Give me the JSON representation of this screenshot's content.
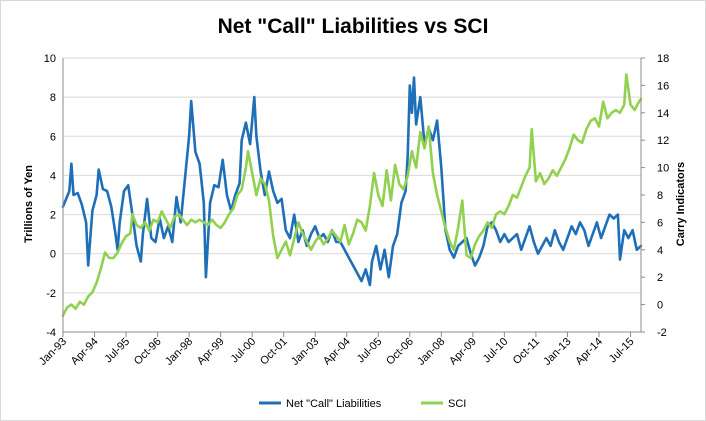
{
  "chart_data": {
    "type": "line",
    "title": "Net \"Call\" Liabilities vs SCI",
    "ylabel_left": "Trillions of Yen",
    "ylabel_right": "Carry Indicators",
    "ylim_left": [
      -4,
      10
    ],
    "ylim_right": [
      -2,
      18
    ],
    "yticks_left": [
      "-4",
      "-2",
      "0",
      "2",
      "4",
      "6",
      "8",
      "10"
    ],
    "yticks_right": [
      "-2",
      "0",
      "2",
      "4",
      "6",
      "8",
      "10",
      "12",
      "14",
      "16",
      "18"
    ],
    "x_start": "1993-01",
    "x_end": "2015-12",
    "xticks": [
      "Jan-93",
      "Apr-94",
      "Jul-95",
      "Oct-96",
      "Jan-98",
      "Apr-99",
      "Jul-00",
      "Oct-01",
      "Jan-03",
      "Apr-04",
      "Jul-05",
      "Oct-06",
      "Jan-08",
      "Apr-09",
      "Jul-10",
      "Oct-11",
      "Jan-13",
      "Apr-14",
      "Jul-15"
    ],
    "grid": true,
    "legend_position": "bottom",
    "series": [
      {
        "name": "Net \"Call\" Liabilities",
        "axis": "left",
        "color": "#1f6fb8",
        "points": [
          [
            "1993-01",
            2.4
          ],
          [
            "1993-04",
            3.2
          ],
          [
            "1993-05",
            4.6
          ],
          [
            "1993-06",
            3.0
          ],
          [
            "1993-08",
            3.1
          ],
          [
            "1993-10",
            2.5
          ],
          [
            "1993-12",
            1.6
          ],
          [
            "1994-01",
            -0.6
          ],
          [
            "1994-03",
            2.2
          ],
          [
            "1994-05",
            3.0
          ],
          [
            "1994-06",
            4.3
          ],
          [
            "1994-08",
            3.3
          ],
          [
            "1994-10",
            3.2
          ],
          [
            "1994-12",
            2.4
          ],
          [
            "1995-02",
            1.0
          ],
          [
            "1995-03",
            0.2
          ],
          [
            "1995-04",
            1.6
          ],
          [
            "1995-06",
            3.2
          ],
          [
            "1995-08",
            3.5
          ],
          [
            "1995-10",
            2.0
          ],
          [
            "1995-12",
            0.4
          ],
          [
            "1996-02",
            -0.4
          ],
          [
            "1996-03",
            1.0
          ],
          [
            "1996-05",
            2.8
          ],
          [
            "1996-07",
            0.8
          ],
          [
            "1996-09",
            0.6
          ],
          [
            "1996-11",
            1.8
          ],
          [
            "1997-01",
            0.8
          ],
          [
            "1997-03",
            1.4
          ],
          [
            "1997-05",
            0.6
          ],
          [
            "1997-07",
            2.9
          ],
          [
            "1997-09",
            1.6
          ],
          [
            "1997-11",
            3.8
          ],
          [
            "1998-01",
            6.0
          ],
          [
            "1998-02",
            7.8
          ],
          [
            "1998-04",
            5.2
          ],
          [
            "1998-06",
            4.6
          ],
          [
            "1998-08",
            2.6
          ],
          [
            "1998-09",
            -1.2
          ],
          [
            "1998-11",
            2.6
          ],
          [
            "1999-01",
            3.5
          ],
          [
            "1999-03",
            3.4
          ],
          [
            "1999-05",
            4.8
          ],
          [
            "1999-07",
            3.0
          ],
          [
            "1999-09",
            2.2
          ],
          [
            "1999-11",
            3.0
          ],
          [
            "2000-01",
            3.6
          ],
          [
            "2000-02",
            5.8
          ],
          [
            "2000-04",
            6.7
          ],
          [
            "2000-06",
            5.6
          ],
          [
            "2000-08",
            8.0
          ],
          [
            "2000-09",
            6.0
          ],
          [
            "2000-11",
            4.2
          ],
          [
            "2001-01",
            3.0
          ],
          [
            "2001-03",
            4.2
          ],
          [
            "2001-05",
            3.2
          ],
          [
            "2001-07",
            2.6
          ],
          [
            "2001-09",
            2.8
          ],
          [
            "2001-11",
            1.2
          ],
          [
            "2002-01",
            0.8
          ],
          [
            "2002-03",
            2.0
          ],
          [
            "2002-05",
            0.6
          ],
          [
            "2002-07",
            1.2
          ],
          [
            "2002-09",
            0.4
          ],
          [
            "2002-11",
            1.0
          ],
          [
            "2003-01",
            1.4
          ],
          [
            "2003-03",
            0.8
          ],
          [
            "2003-05",
            1.0
          ],
          [
            "2003-07",
            0.6
          ],
          [
            "2003-09",
            1.2
          ],
          [
            "2003-11",
            0.6
          ],
          [
            "2004-01",
            0.6
          ],
          [
            "2004-03",
            0.2
          ],
          [
            "2004-05",
            -0.2
          ],
          [
            "2004-07",
            -0.6
          ],
          [
            "2004-09",
            -1.0
          ],
          [
            "2004-11",
            -1.4
          ],
          [
            "2005-01",
            -0.8
          ],
          [
            "2005-03",
            -1.6
          ],
          [
            "2005-04",
            -0.4
          ],
          [
            "2005-06",
            0.4
          ],
          [
            "2005-08",
            -0.8
          ],
          [
            "2005-10",
            0.2
          ],
          [
            "2005-12",
            -1.2
          ],
          [
            "2006-02",
            0.4
          ],
          [
            "2006-04",
            1.0
          ],
          [
            "2006-06",
            2.6
          ],
          [
            "2006-08",
            3.2
          ],
          [
            "2006-09",
            5.0
          ],
          [
            "2006-10",
            8.6
          ],
          [
            "2006-11",
            7.2
          ],
          [
            "2006-12",
            9.0
          ],
          [
            "2007-01",
            6.6
          ],
          [
            "2007-03",
            8.0
          ],
          [
            "2007-05",
            5.6
          ],
          [
            "2007-07",
            6.4
          ],
          [
            "2007-09",
            5.8
          ],
          [
            "2007-11",
            6.8
          ],
          [
            "2008-01",
            4.4
          ],
          [
            "2008-03",
            1.2
          ],
          [
            "2008-05",
            0.2
          ],
          [
            "2008-07",
            -0.2
          ],
          [
            "2008-09",
            0.4
          ],
          [
            "2008-11",
            0.6
          ],
          [
            "2009-01",
            0.8
          ],
          [
            "2009-03",
            0.0
          ],
          [
            "2009-05",
            -0.6
          ],
          [
            "2009-07",
            -0.2
          ],
          [
            "2009-09",
            0.4
          ],
          [
            "2009-11",
            1.4
          ],
          [
            "2010-01",
            1.6
          ],
          [
            "2010-03",
            1.2
          ],
          [
            "2010-05",
            0.6
          ],
          [
            "2010-07",
            1.0
          ],
          [
            "2010-09",
            0.6
          ],
          [
            "2010-11",
            0.8
          ],
          [
            "2011-01",
            1.0
          ],
          [
            "2011-03",
            0.2
          ],
          [
            "2011-05",
            0.8
          ],
          [
            "2011-07",
            1.4
          ],
          [
            "2011-09",
            0.6
          ],
          [
            "2011-11",
            0.0
          ],
          [
            "2012-01",
            0.4
          ],
          [
            "2012-03",
            0.8
          ],
          [
            "2012-05",
            0.4
          ],
          [
            "2012-07",
            1.2
          ],
          [
            "2012-09",
            0.6
          ],
          [
            "2012-11",
            0.2
          ],
          [
            "2013-01",
            0.8
          ],
          [
            "2013-03",
            1.4
          ],
          [
            "2013-05",
            1.0
          ],
          [
            "2013-07",
            1.6
          ],
          [
            "2013-09",
            1.2
          ],
          [
            "2013-11",
            0.4
          ],
          [
            "2014-01",
            1.0
          ],
          [
            "2014-03",
            1.6
          ],
          [
            "2014-05",
            0.8
          ],
          [
            "2014-07",
            1.4
          ],
          [
            "2014-09",
            2.0
          ],
          [
            "2014-11",
            1.8
          ],
          [
            "2015-01",
            2.0
          ],
          [
            "2015-02",
            -0.3
          ],
          [
            "2015-04",
            1.2
          ],
          [
            "2015-06",
            0.8
          ],
          [
            "2015-08",
            1.2
          ],
          [
            "2015-10",
            0.2
          ],
          [
            "2015-12",
            0.4
          ]
        ]
      },
      {
        "name": "SCI",
        "axis": "right",
        "color": "#92d050",
        "points": [
          [
            "1993-01",
            -0.8
          ],
          [
            "1993-03",
            -0.2
          ],
          [
            "1993-05",
            0.0
          ],
          [
            "1993-07",
            -0.3
          ],
          [
            "1993-09",
            0.2
          ],
          [
            "1993-11",
            0.0
          ],
          [
            "1994-01",
            0.6
          ],
          [
            "1994-03",
            0.9
          ],
          [
            "1994-05",
            1.6
          ],
          [
            "1994-07",
            2.6
          ],
          [
            "1994-09",
            3.8
          ],
          [
            "1994-11",
            3.4
          ],
          [
            "1995-01",
            3.4
          ],
          [
            "1995-03",
            3.8
          ],
          [
            "1995-05",
            4.5
          ],
          [
            "1995-07",
            5.0
          ],
          [
            "1995-09",
            5.2
          ],
          [
            "1995-10",
            6.6
          ],
          [
            "1995-12",
            5.8
          ],
          [
            "1996-02",
            5.6
          ],
          [
            "1996-04",
            6.0
          ],
          [
            "1996-06",
            5.4
          ],
          [
            "1996-08",
            6.2
          ],
          [
            "1996-10",
            6.0
          ],
          [
            "1996-12",
            6.8
          ],
          [
            "1997-02",
            6.2
          ],
          [
            "1997-04",
            5.6
          ],
          [
            "1997-06",
            6.4
          ],
          [
            "1997-08",
            6.6
          ],
          [
            "1997-10",
            6.2
          ],
          [
            "1997-12",
            5.8
          ],
          [
            "1998-02",
            6.2
          ],
          [
            "1998-04",
            6.0
          ],
          [
            "1998-06",
            6.2
          ],
          [
            "1998-08",
            6.0
          ],
          [
            "1998-10",
            5.8
          ],
          [
            "1998-12",
            6.2
          ],
          [
            "1999-02",
            5.8
          ],
          [
            "1999-04",
            5.6
          ],
          [
            "1999-06",
            6.0
          ],
          [
            "1999-08",
            6.6
          ],
          [
            "1999-10",
            7.0
          ],
          [
            "1999-12",
            8.0
          ],
          [
            "2000-02",
            8.4
          ],
          [
            "2000-04",
            10.0
          ],
          [
            "2000-05",
            11.2
          ],
          [
            "2000-07",
            9.6
          ],
          [
            "2000-09",
            8.0
          ],
          [
            "2000-11",
            9.2
          ],
          [
            "2001-01",
            8.8
          ],
          [
            "2001-03",
            7.6
          ],
          [
            "2001-05",
            5.0
          ],
          [
            "2001-07",
            3.4
          ],
          [
            "2001-09",
            4.0
          ],
          [
            "2001-11",
            4.6
          ],
          [
            "2002-01",
            3.6
          ],
          [
            "2002-03",
            4.8
          ],
          [
            "2002-05",
            6.0
          ],
          [
            "2002-07",
            5.2
          ],
          [
            "2002-09",
            4.6
          ],
          [
            "2002-11",
            4.0
          ],
          [
            "2003-01",
            4.6
          ],
          [
            "2003-03",
            5.0
          ],
          [
            "2003-05",
            4.4
          ],
          [
            "2003-07",
            4.8
          ],
          [
            "2003-09",
            5.4
          ],
          [
            "2003-11",
            5.0
          ],
          [
            "2004-01",
            4.6
          ],
          [
            "2004-03",
            5.8
          ],
          [
            "2004-05",
            4.4
          ],
          [
            "2004-07",
            5.2
          ],
          [
            "2004-09",
            6.2
          ],
          [
            "2004-11",
            6.0
          ],
          [
            "2005-01",
            5.4
          ],
          [
            "2005-03",
            7.2
          ],
          [
            "2005-05",
            9.6
          ],
          [
            "2005-07",
            8.0
          ],
          [
            "2005-09",
            7.2
          ],
          [
            "2005-11",
            9.8
          ],
          [
            "2006-01",
            7.6
          ],
          [
            "2006-03",
            10.2
          ],
          [
            "2006-05",
            8.8
          ],
          [
            "2006-07",
            8.4
          ],
          [
            "2006-09",
            9.4
          ],
          [
            "2006-11",
            11.2
          ],
          [
            "2007-01",
            10.0
          ],
          [
            "2007-03",
            12.6
          ],
          [
            "2007-05",
            11.4
          ],
          [
            "2007-07",
            13.0
          ],
          [
            "2007-09",
            9.6
          ],
          [
            "2007-11",
            8.0
          ],
          [
            "2008-01",
            6.8
          ],
          [
            "2008-03",
            5.6
          ],
          [
            "2008-05",
            4.6
          ],
          [
            "2008-07",
            4.0
          ],
          [
            "2008-09",
            5.6
          ],
          [
            "2008-11",
            7.6
          ],
          [
            "2009-01",
            3.6
          ],
          [
            "2009-03",
            3.4
          ],
          [
            "2009-05",
            4.4
          ],
          [
            "2009-07",
            5.0
          ],
          [
            "2009-09",
            5.4
          ],
          [
            "2009-11",
            6.0
          ],
          [
            "2010-01",
            5.6
          ],
          [
            "2010-03",
            6.6
          ],
          [
            "2010-05",
            6.8
          ],
          [
            "2010-07",
            6.6
          ],
          [
            "2010-09",
            7.2
          ],
          [
            "2010-11",
            8.0
          ],
          [
            "2011-01",
            7.8
          ],
          [
            "2011-03",
            8.6
          ],
          [
            "2011-05",
            9.4
          ],
          [
            "2011-07",
            10.0
          ],
          [
            "2011-08",
            12.8
          ],
          [
            "2011-10",
            9.0
          ],
          [
            "2011-12",
            9.6
          ],
          [
            "2012-02",
            8.8
          ],
          [
            "2012-04",
            9.2
          ],
          [
            "2012-06",
            9.8
          ],
          [
            "2012-08",
            9.4
          ],
          [
            "2012-10",
            10.0
          ],
          [
            "2012-12",
            10.6
          ],
          [
            "2013-02",
            11.4
          ],
          [
            "2013-04",
            12.4
          ],
          [
            "2013-06",
            12.0
          ],
          [
            "2013-08",
            11.8
          ],
          [
            "2013-10",
            12.8
          ],
          [
            "2013-12",
            13.4
          ],
          [
            "2014-02",
            13.6
          ],
          [
            "2014-04",
            13.0
          ],
          [
            "2014-06",
            14.8
          ],
          [
            "2014-08",
            13.6
          ],
          [
            "2014-10",
            14.0
          ],
          [
            "2014-12",
            14.2
          ],
          [
            "2015-02",
            14.0
          ],
          [
            "2015-04",
            14.6
          ],
          [
            "2015-05",
            16.8
          ],
          [
            "2015-07",
            14.6
          ],
          [
            "2015-09",
            14.2
          ],
          [
            "2015-11",
            14.8
          ],
          [
            "2015-12",
            15.0
          ]
        ]
      }
    ]
  }
}
